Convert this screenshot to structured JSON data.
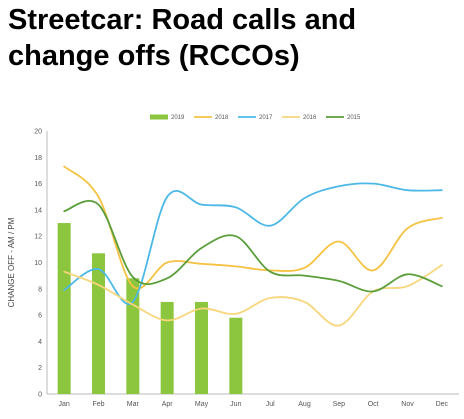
{
  "title": "Streetcar: Road calls and change offs (RCCOs)",
  "chart_data": {
    "type": "bar",
    "categories": [
      "Jan",
      "Feb",
      "Mar",
      "Apr",
      "May",
      "Jun",
      "Jul",
      "Aug",
      "Sep",
      "Oct",
      "Nov",
      "Dec"
    ],
    "ylabel": "CHANGE OFF - AM / PM",
    "xlabel": "",
    "ylim": [
      0,
      20
    ],
    "yticks": [
      0,
      2,
      4,
      6,
      8,
      10,
      12,
      14,
      16,
      18,
      20
    ],
    "legend_position": "top",
    "grid": false,
    "series": [
      {
        "name": "2019",
        "type": "bar",
        "color": "#8cc63f",
        "values": [
          13.0,
          10.7,
          8.8,
          7.0,
          7.0,
          5.8,
          null,
          null,
          null,
          null,
          null,
          null
        ]
      },
      {
        "name": "2018",
        "type": "line",
        "color": "#f5c242",
        "values": [
          17.3,
          15.0,
          8.2,
          10.0,
          9.9,
          9.7,
          9.4,
          9.6,
          11.6,
          9.4,
          12.6,
          13.4
        ]
      },
      {
        "name": "2017",
        "type": "line",
        "color": "#4bb8e8",
        "values": [
          7.9,
          9.5,
          7.0,
          15.0,
          14.4,
          14.2,
          12.8,
          14.9,
          15.8,
          16.0,
          15.5,
          15.5
        ]
      },
      {
        "name": "2016",
        "type": "line",
        "color": "#f8d67c",
        "values": [
          9.3,
          8.3,
          6.8,
          5.6,
          6.5,
          6.1,
          7.3,
          7.0,
          5.2,
          7.8,
          8.2,
          9.8
        ]
      },
      {
        "name": "2015",
        "type": "line",
        "color": "#5a9e3a",
        "values": [
          13.9,
          14.4,
          8.9,
          8.8,
          11.1,
          12.0,
          9.3,
          9.0,
          8.6,
          7.8,
          9.1,
          8.2
        ]
      }
    ]
  }
}
